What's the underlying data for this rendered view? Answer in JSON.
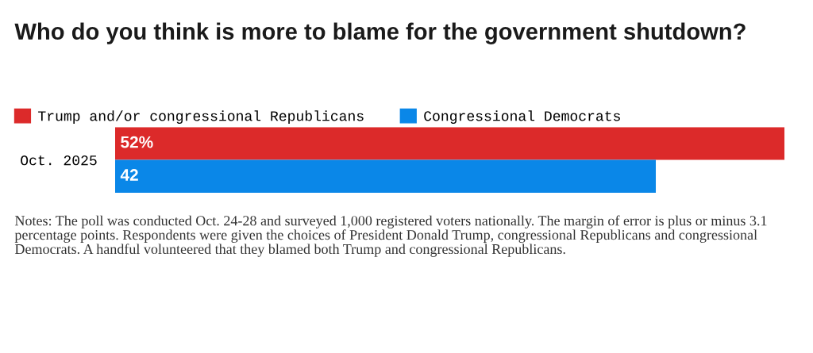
{
  "chart_data": {
    "type": "bar",
    "orientation": "horizontal",
    "title": "Who do you think is more to blame for the government shutdown?",
    "categories": [
      "Oct. 2025"
    ],
    "series": [
      {
        "name": "Trump and/or congressional Republicans",
        "color": "#dc2a2a",
        "values": [
          52
        ],
        "value_labels": [
          "52%"
        ]
      },
      {
        "name": "Congressional Democrats",
        "color": "#0a87e8",
        "values": [
          42
        ],
        "value_labels": [
          "42"
        ]
      }
    ],
    "legend": "top left",
    "annotations": [
      "Notes: The poll was conducted Oct. 24-28 and surveyed 1,000 registered voters nationally. The margin of error is plus or minus 3.1 percentage points. Respondents were given the choices of President Donald Trump, congressional Republicans and congressional Democrats. A handful volunteered that they blamed both Trump and congressional Republicans."
    ]
  }
}
